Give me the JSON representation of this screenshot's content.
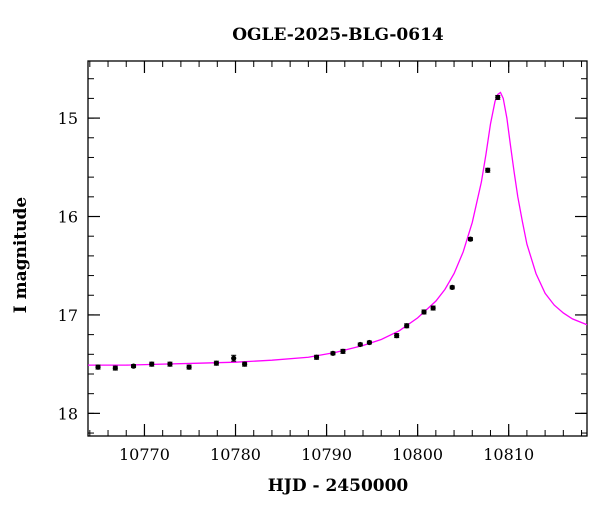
{
  "chart_data": {
    "type": "scatter",
    "title": "OGLE-2025-BLG-0614",
    "xlabel": "HJD - 2450000",
    "ylabel": "I magnitude",
    "xlim": [
      10763.8,
      10818.6
    ],
    "ylim": [
      18.23,
      14.42
    ],
    "y_inverted": true,
    "x_major_ticks": [
      10770,
      10780,
      10790,
      10800,
      10810
    ],
    "x_tick_labels": [
      "10770",
      "10780",
      "10790",
      "10800",
      "10810"
    ],
    "y_major_ticks": [
      15,
      16,
      17,
      18
    ],
    "y_tick_labels": [
      "15",
      "16",
      "17",
      "18"
    ],
    "grid": false,
    "colors": {
      "points": "#000000",
      "model": "#ff00ff"
    },
    "series": [
      {
        "kind": "points",
        "x": [
          10764.9,
          10766.8,
          10768.8,
          10770.8,
          10772.8,
          10774.9,
          10777.9,
          10779.8,
          10781.0,
          10788.9,
          10790.7,
          10791.8,
          10793.7,
          10794.7,
          10797.7,
          10798.8,
          10800.7,
          10801.7,
          10803.8,
          10805.8,
          10807.7,
          10808.8
        ],
        "y": [
          17.53,
          17.54,
          17.52,
          17.5,
          17.5,
          17.53,
          17.49,
          17.44,
          17.5,
          17.43,
          17.39,
          17.37,
          17.3,
          17.28,
          17.21,
          17.11,
          16.97,
          16.93,
          16.72,
          16.23,
          15.53,
          14.79
        ],
        "yerr": [
          0.02,
          0.02,
          0.015,
          0.02,
          0.02,
          0.02,
          0.02,
          0.03,
          0.02,
          0.02,
          0.015,
          0.02,
          0.015,
          0.015,
          0.02,
          0.02,
          0.02,
          0.02,
          0.015,
          0.015,
          0.02,
          0.02
        ]
      },
      {
        "kind": "model",
        "x": [
          10763.8,
          10768,
          10772,
          10776,
          10780,
          10784,
          10788,
          10791,
          10794,
          10796,
          10798,
          10800,
          10802,
          10803,
          10804,
          10805,
          10806,
          10807,
          10807.5,
          10808,
          10808.5,
          10808.8,
          10809.1,
          10809.4,
          10809.8,
          10810.2,
          10810.6,
          10811,
          10811.5,
          10812,
          10813,
          10814,
          10815,
          10816,
          10817,
          10818.6
        ],
        "y": [
          17.51,
          17.51,
          17.5,
          17.49,
          17.48,
          17.46,
          17.43,
          17.38,
          17.31,
          17.25,
          17.16,
          17.03,
          16.86,
          16.74,
          16.58,
          16.36,
          16.06,
          15.65,
          15.37,
          15.06,
          14.83,
          14.76,
          14.74,
          14.8,
          15.0,
          15.28,
          15.55,
          15.8,
          16.05,
          16.28,
          16.58,
          16.78,
          16.9,
          16.98,
          17.04,
          17.1
        ]
      }
    ]
  }
}
